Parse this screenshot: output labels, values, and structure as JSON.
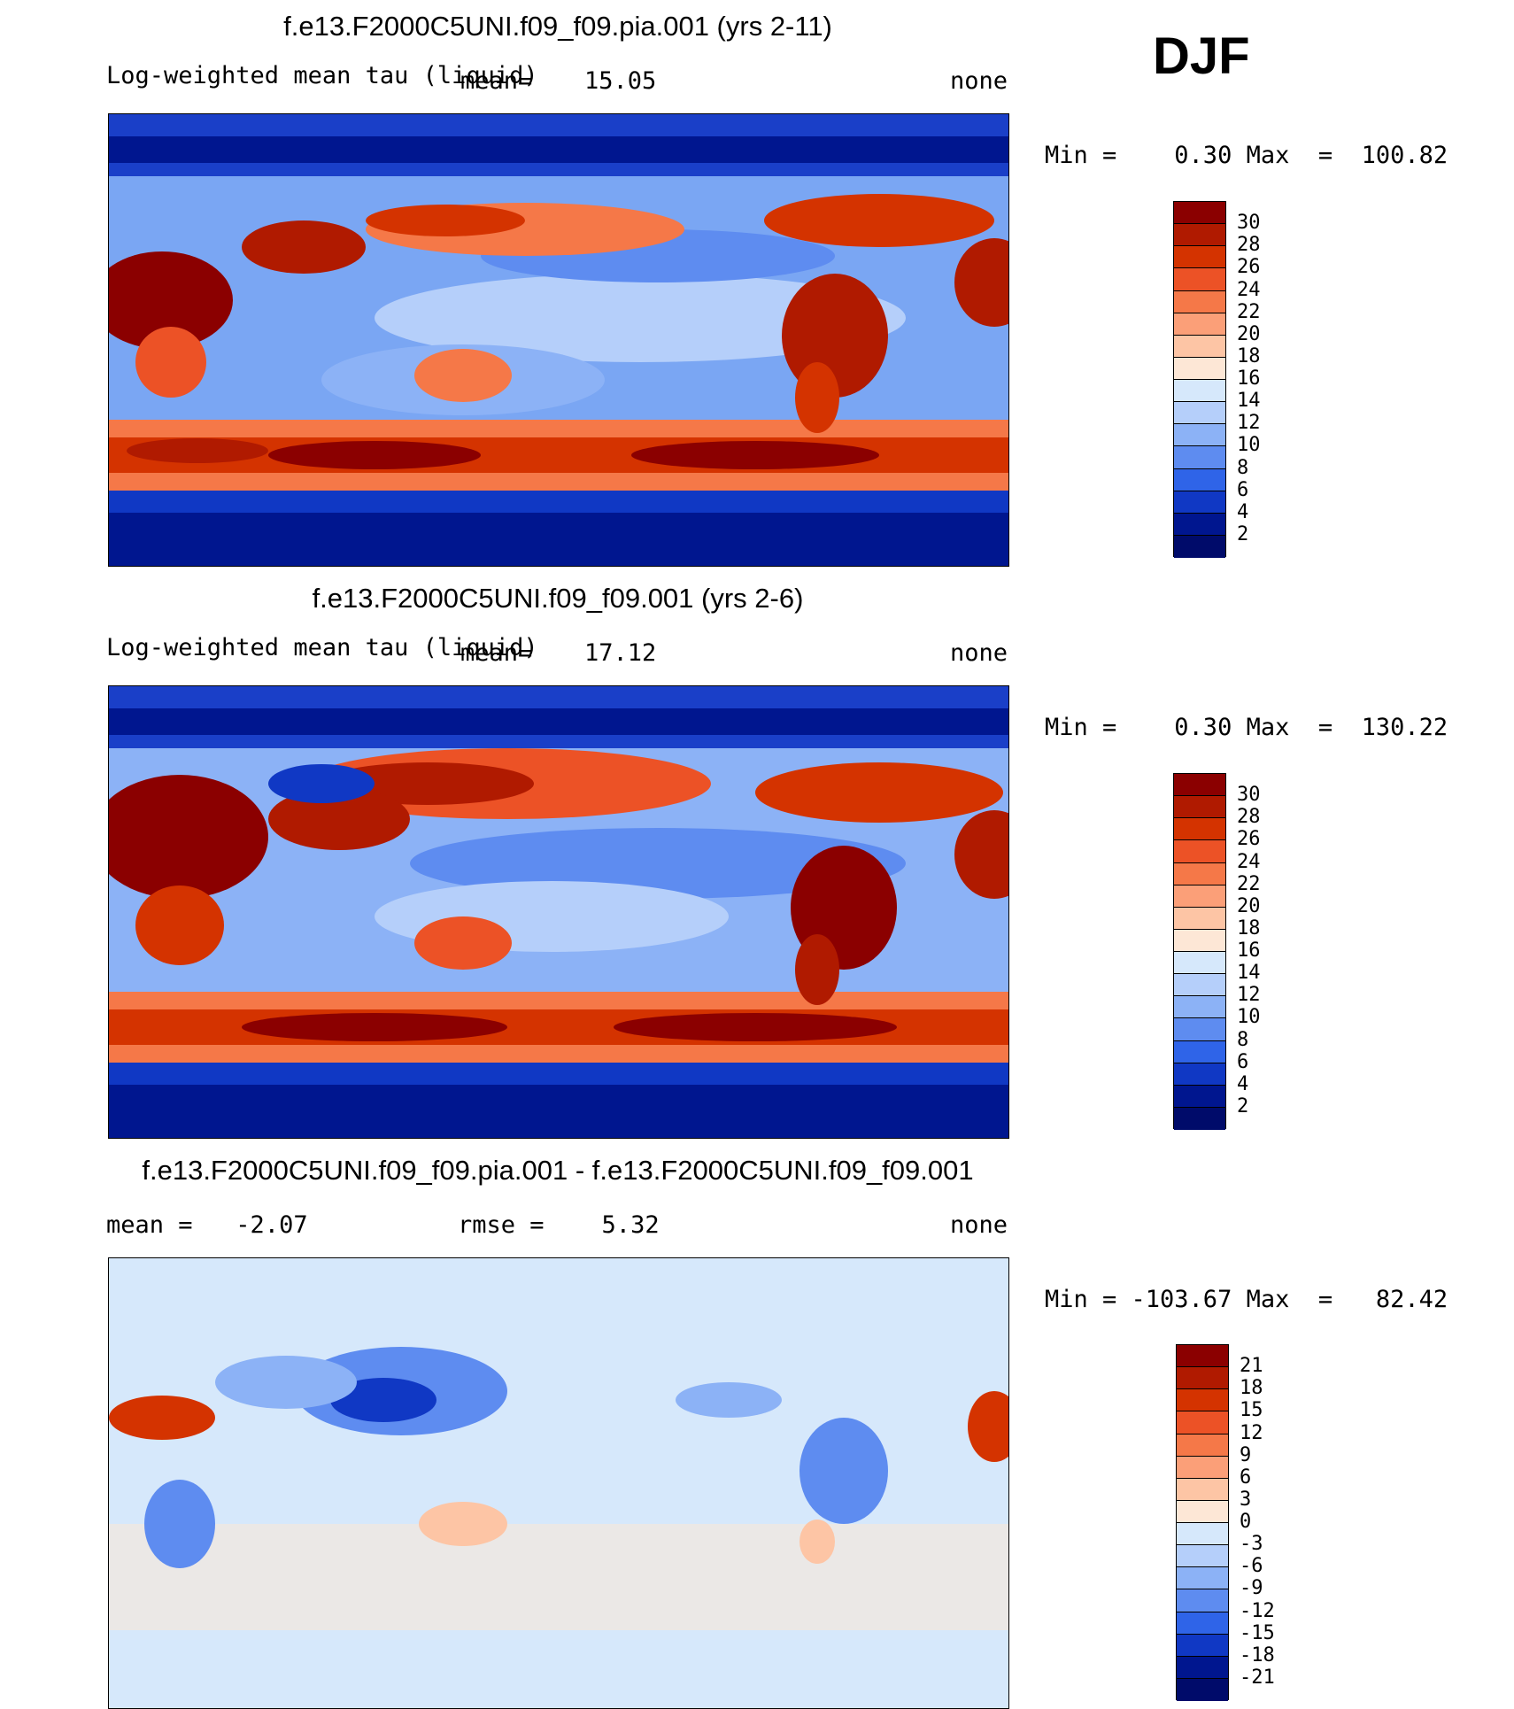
{
  "season": "DJF",
  "panels": [
    {
      "title": "f.e13.F2000C5UNI.f09_f09.pia.001 (yrs 2-11)",
      "variable": "Log-weighted mean tau (liquid)",
      "mean_label": "mean=",
      "mean_value": "15.05",
      "units": "none",
      "minmax": "Min =    0.30 Max  =  100.82",
      "colorbar": {
        "labels": [
          "30",
          "28",
          "26",
          "24",
          "22",
          "20",
          "18",
          "16",
          "14",
          "12",
          "10",
          "8",
          "6",
          "4",
          "2"
        ],
        "colors": [
          "#8b0000",
          "#b01a00",
          "#d43300",
          "#ec5226",
          "#f57848",
          "#fb9f78",
          "#fdc5a5",
          "#fde7d6",
          "#d6e8fb",
          "#b5cffa",
          "#8cb2f6",
          "#5e8cf0",
          "#2f64e8",
          "#1038c4",
          "#00168f",
          "#000b6a"
        ]
      }
    },
    {
      "title": "f.e13.F2000C5UNI.f09_f09.001 (yrs 2-6)",
      "variable": "Log-weighted mean tau (liquid)",
      "mean_label": "mean=",
      "mean_value": "17.12",
      "units": "none",
      "minmax": "Min =    0.30 Max  =  130.22",
      "colorbar": {
        "labels": [
          "30",
          "28",
          "26",
          "24",
          "22",
          "20",
          "18",
          "16",
          "14",
          "12",
          "10",
          "8",
          "6",
          "4",
          "2"
        ],
        "colors": [
          "#8b0000",
          "#b01a00",
          "#d43300",
          "#ec5226",
          "#f57848",
          "#fb9f78",
          "#fdc5a5",
          "#fde7d6",
          "#d6e8fb",
          "#b5cffa",
          "#8cb2f6",
          "#5e8cf0",
          "#2f64e8",
          "#1038c4",
          "#00168f",
          "#000b6a"
        ]
      }
    },
    {
      "title": "f.e13.F2000C5UNI.f09_f09.pia.001 - f.e13.F2000C5UNI.f09_f09.001",
      "mean_text": "mean =   -2.07",
      "rmse_text": "rmse =    5.32",
      "units": "none",
      "minmax": "Min = -103.67 Max  =   82.42",
      "colorbar": {
        "labels": [
          "21",
          "18",
          "15",
          "12",
          "9",
          "6",
          "3",
          "0",
          "-3",
          "-6",
          "-9",
          "-12",
          "-15",
          "-18",
          "-21"
        ],
        "colors": [
          "#8b0000",
          "#b01a00",
          "#d43300",
          "#ec5226",
          "#f57848",
          "#fb9f78",
          "#fdc5a5",
          "#fde7d6",
          "#d6e8fb",
          "#b5cffa",
          "#8cb2f6",
          "#5e8cf0",
          "#2f64e8",
          "#1038c4",
          "#00168f",
          "#000b6a"
        ]
      }
    }
  ]
}
